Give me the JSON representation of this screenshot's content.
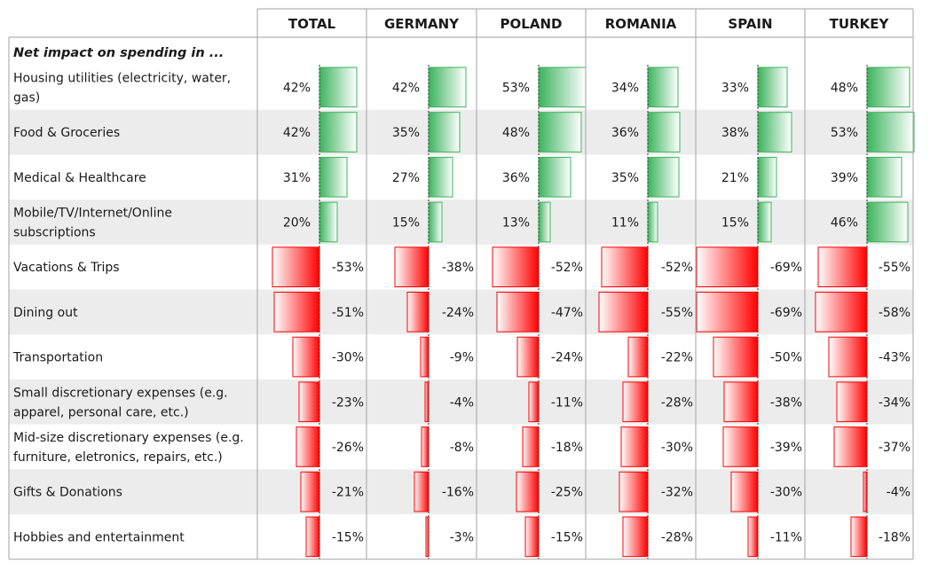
{
  "chart_data": {
    "type": "table",
    "section_label": "Net impact on spending in ...",
    "columns": [
      "TOTAL",
      "GERMANY",
      "POLAND",
      "ROMANIA",
      "SPAIN",
      "TURKEY"
    ],
    "rows": [
      {
        "label": [
          "Housing utilities (electricity, water,",
          "gas)"
        ],
        "values": [
          42,
          42,
          53,
          34,
          33,
          48
        ]
      },
      {
        "label": [
          "Food & Groceries"
        ],
        "values": [
          42,
          35,
          48,
          36,
          38,
          53
        ]
      },
      {
        "label": [
          "Medical & Healthcare"
        ],
        "values": [
          31,
          27,
          36,
          35,
          21,
          39
        ]
      },
      {
        "label": [
          "Mobile/TV/Internet/Online",
          "subscriptions"
        ],
        "values": [
          20,
          15,
          13,
          11,
          15,
          46
        ]
      },
      {
        "label": [
          "Vacations & Trips"
        ],
        "values": [
          -53,
          -38,
          -52,
          -52,
          -69,
          -55
        ]
      },
      {
        "label": [
          "Dining out"
        ],
        "values": [
          -51,
          -24,
          -47,
          -55,
          -69,
          -58
        ]
      },
      {
        "label": [
          "Transportation"
        ],
        "values": [
          -30,
          -9,
          -24,
          -22,
          -50,
          -43
        ]
      },
      {
        "label": [
          "Small discretionary expenses (e.g.",
          "apparel, personal care, etc.)"
        ],
        "values": [
          -23,
          -4,
          -11,
          -28,
          -38,
          -34
        ]
      },
      {
        "label": [
          "Mid-size discretionary expenses (e.g.",
          "furniture, eletronics, repairs, etc.)"
        ],
        "values": [
          -26,
          -8,
          -18,
          -30,
          -39,
          -37
        ]
      },
      {
        "label": [
          "Gifts & Donations"
        ],
        "values": [
          -21,
          -16,
          -25,
          -32,
          -30,
          -4
        ]
      },
      {
        "label": [
          "Hobbies and entertainment"
        ],
        "values": [
          -15,
          -3,
          -15,
          -28,
          -11,
          -18
        ]
      }
    ],
    "unit": "%",
    "colors": {
      "positive": "#3cb35c",
      "negative": "#ff0000",
      "alt_row": "#ececec",
      "grid": "#b0b0b0"
    }
  }
}
